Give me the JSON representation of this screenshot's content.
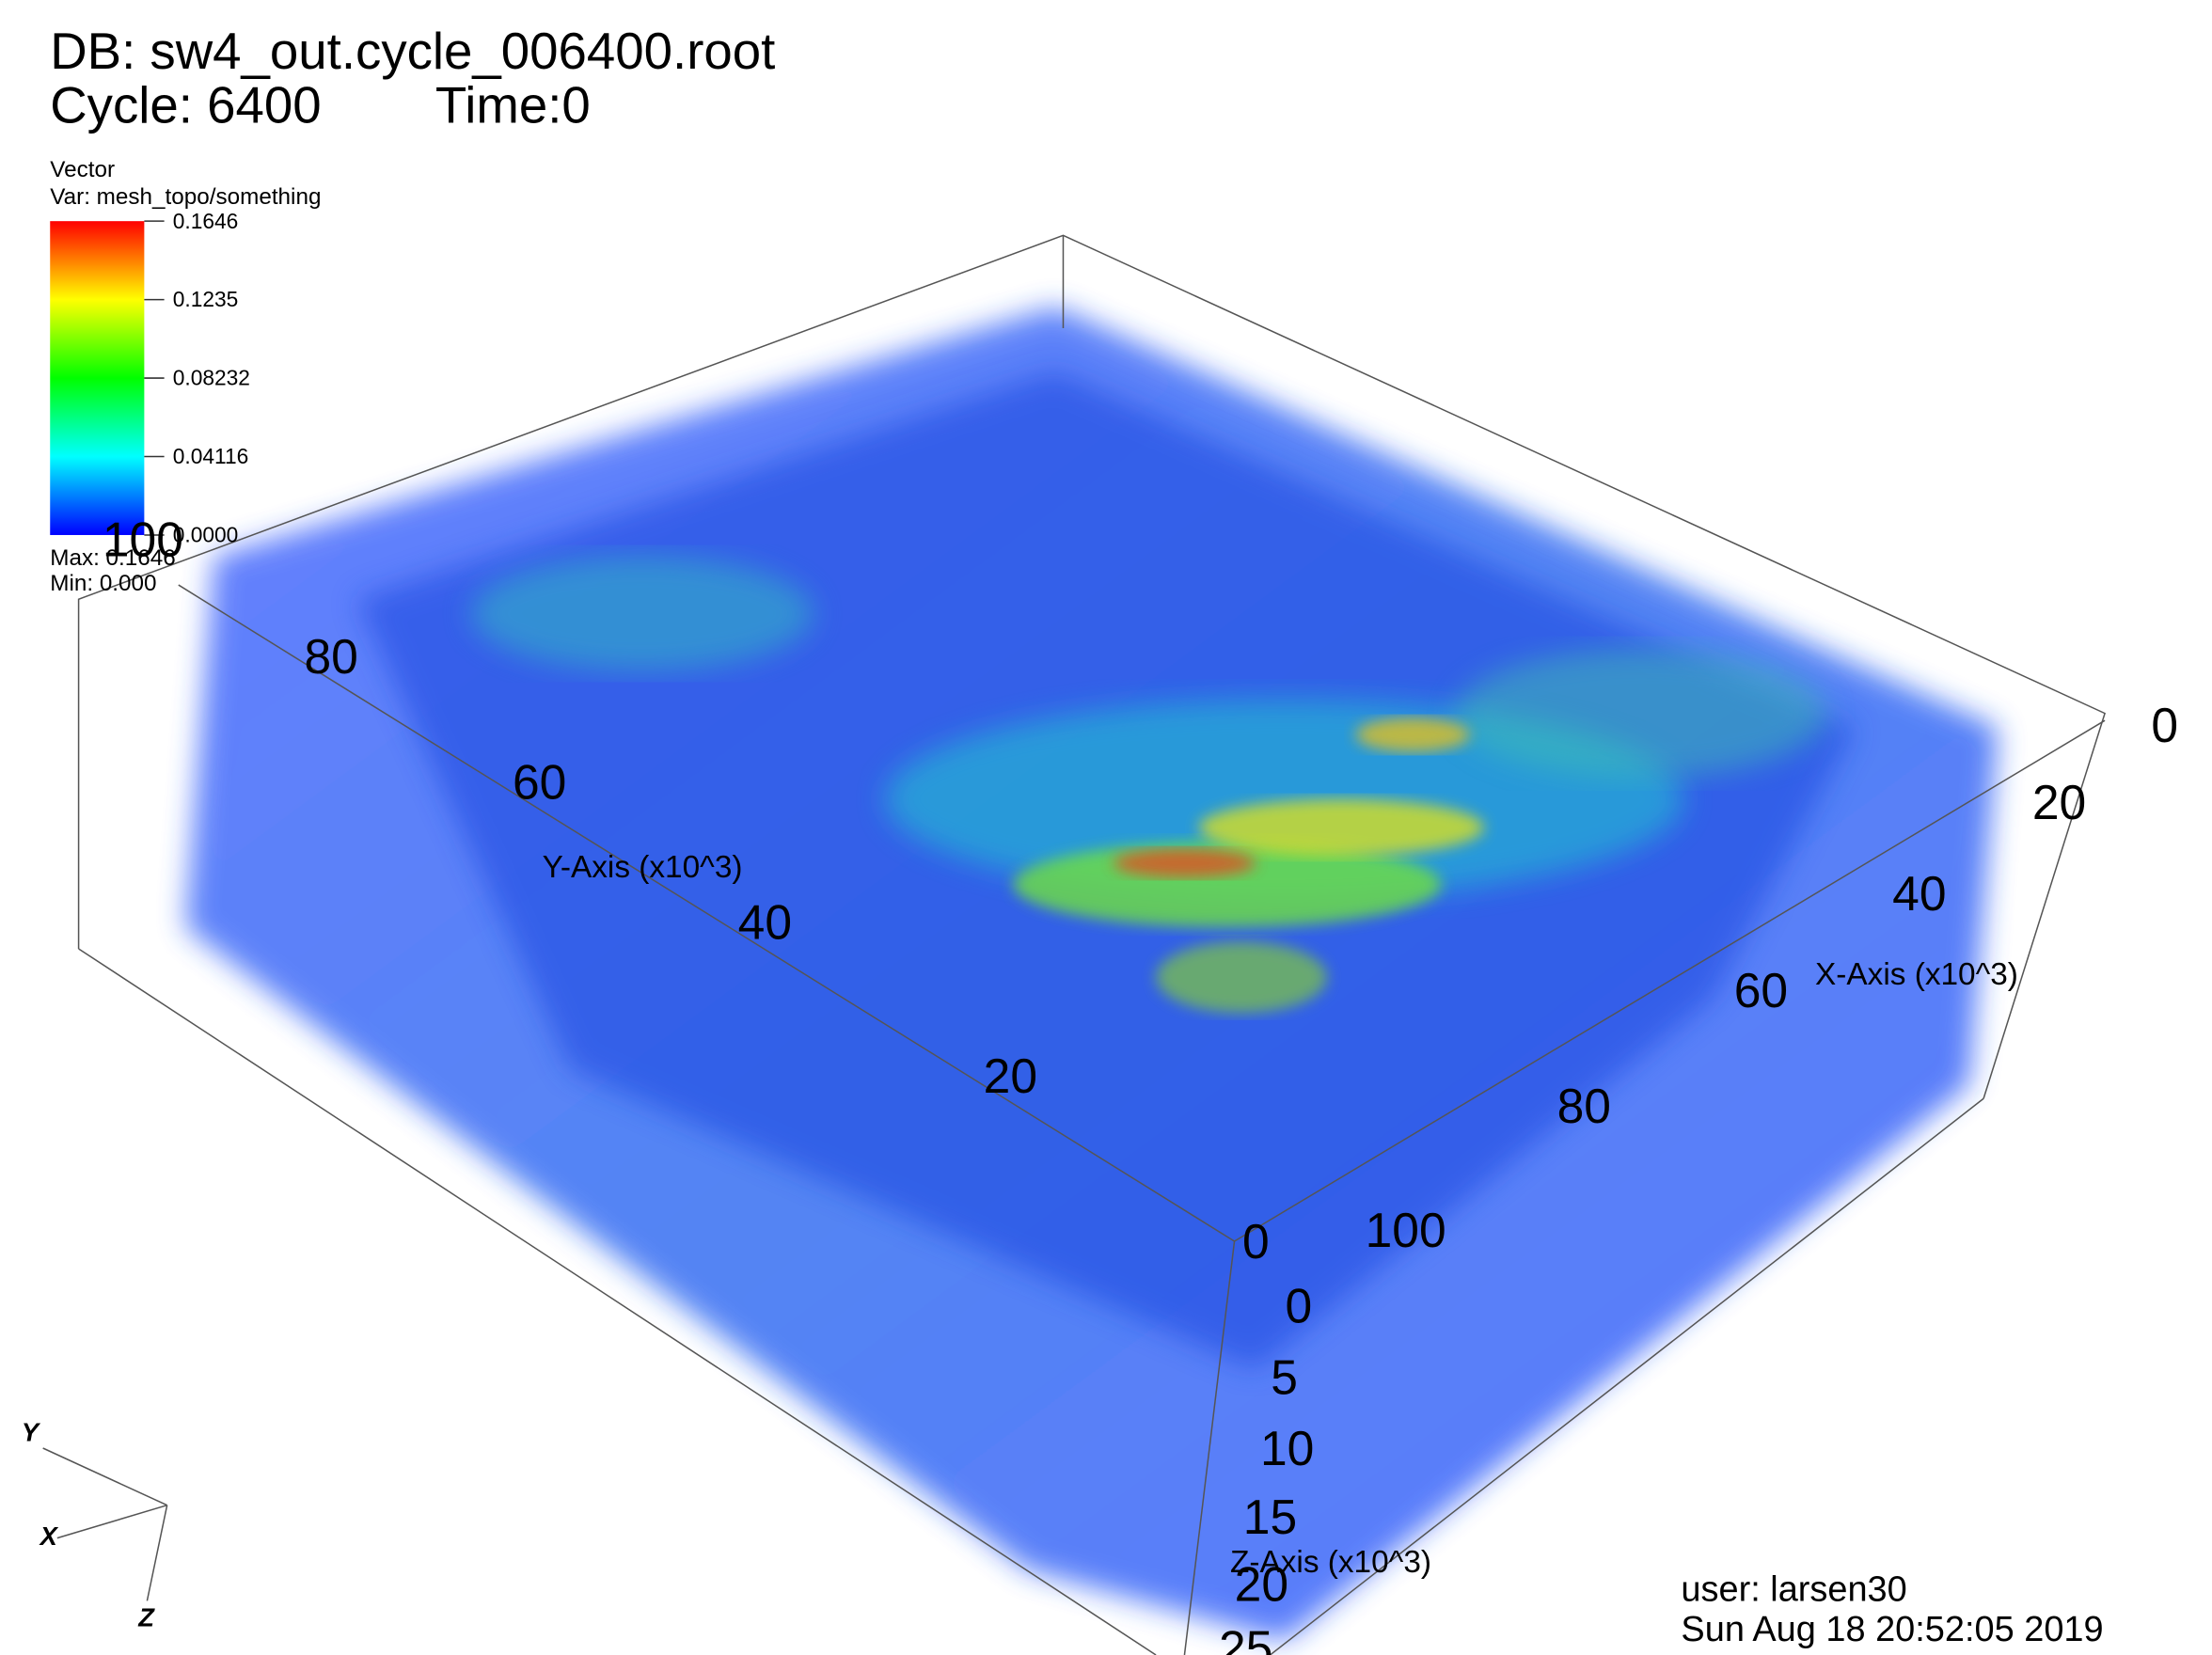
{
  "header": {
    "db": "DB: sw4_out.cycle_006400.root",
    "cycle": "Cycle: 6400",
    "time": "Time:0"
  },
  "legend": {
    "title": "Vector",
    "var": "Var: mesh_topo/something",
    "ticks": [
      "0.1646",
      "0.1235",
      "0.08232",
      "0.04116",
      "0.0000"
    ],
    "max": "Max: 0.1646",
    "min": "Min: 0.000"
  },
  "axes": {
    "y": {
      "label": "Y-Axis (x10^3)",
      "ticks": [
        "100",
        "80",
        "60",
        "40",
        "20",
        "0"
      ]
    },
    "x": {
      "label": "X-Axis (x10^3)",
      "ticks": [
        "0",
        "20",
        "40",
        "60",
        "80",
        "100"
      ]
    },
    "z": {
      "label": "Z-Axis (x10^3)",
      "ticks": [
        "0",
        "5",
        "10",
        "15",
        "20",
        "25"
      ]
    }
  },
  "triad": [
    "Y",
    "X",
    "Z"
  ],
  "footer": {
    "user": "user: larsen30",
    "date": "Sun Aug 18 20:52:05 2019"
  }
}
